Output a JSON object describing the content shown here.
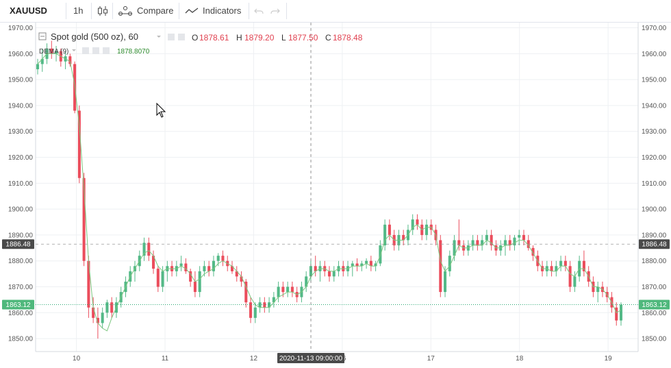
{
  "toolbar": {
    "symbol": "XAUUSD",
    "interval": "1h",
    "compare_label": "Compare",
    "indicators_label": "Indicators"
  },
  "legend": {
    "title": "Spot gold (500 oz), 60",
    "open_label": "O",
    "open": "1878.61",
    "high_label": "H",
    "high": "1879.20",
    "low_label": "L",
    "low": "1877.50",
    "close_label": "C",
    "close": "1878.48",
    "dema_label": "DEMA (9)",
    "dema_value": "1878.8070"
  },
  "colors": {
    "up": "#53b987",
    "down": "#eb4d5c",
    "dema": "#7bc67e",
    "grid": "#eef0f3"
  },
  "chart_data": {
    "type": "candlestick",
    "ylim": [
      1845,
      1972
    ],
    "y_ticks": [
      "1970.00",
      "1960.00",
      "1950.00",
      "1940.00",
      "1930.00",
      "1920.00",
      "1910.00",
      "1900.00",
      "1890.00",
      "1880.00",
      "1870.00",
      "1860.00",
      "1850.00"
    ],
    "x_ticks": [
      "10",
      "11",
      "12",
      "16",
      "17",
      "18",
      "19"
    ],
    "crosshair": {
      "x_label": "2020-11-13 09:00:00",
      "y_label": "1886.48",
      "y": 1886.48
    },
    "last_price": {
      "label": "1863.12",
      "y": 1863.12
    },
    "candles": [
      [
        1954,
        1958,
        1952,
        1956
      ],
      [
        1956,
        1962,
        1953,
        1958
      ],
      [
        1958,
        1964,
        1956,
        1962
      ],
      [
        1962,
        1965,
        1958,
        1960
      ],
      [
        1960,
        1963,
        1957,
        1961
      ],
      [
        1961,
        1962,
        1955,
        1957
      ],
      [
        1957,
        1961,
        1954,
        1959
      ],
      [
        1959,
        1960,
        1955,
        1956
      ],
      [
        1956,
        1957,
        1937,
        1938
      ],
      [
        1938,
        1940,
        1910,
        1912
      ],
      [
        1912,
        1914,
        1878,
        1880
      ],
      [
        1880,
        1882,
        1858,
        1862
      ],
      [
        1862,
        1866,
        1856,
        1858
      ],
      [
        1858,
        1862,
        1850,
        1856
      ],
      [
        1856,
        1862,
        1854,
        1860
      ],
      [
        1860,
        1865,
        1858,
        1864
      ],
      [
        1864,
        1866,
        1858,
        1860
      ],
      [
        1860,
        1866,
        1858,
        1864
      ],
      [
        1864,
        1870,
        1862,
        1868
      ],
      [
        1868,
        1874,
        1866,
        1872
      ],
      [
        1872,
        1878,
        1870,
        1876
      ],
      [
        1876,
        1880,
        1872,
        1878
      ],
      [
        1878,
        1884,
        1876,
        1882
      ],
      [
        1882,
        1889,
        1880,
        1887
      ],
      [
        1887,
        1889,
        1880,
        1882
      ],
      [
        1882,
        1884,
        1875,
        1877
      ],
      [
        1877,
        1878,
        1868,
        1870
      ],
      [
        1870,
        1878,
        1868,
        1876
      ],
      [
        1876,
        1880,
        1872,
        1878
      ],
      [
        1878,
        1880,
        1874,
        1876
      ],
      [
        1876,
        1880,
        1874,
        1878
      ],
      [
        1878,
        1882,
        1876,
        1879
      ],
      [
        1879,
        1881,
        1875,
        1876
      ],
      [
        1876,
        1877,
        1870,
        1872
      ],
      [
        1872,
        1876,
        1866,
        1868
      ],
      [
        1868,
        1878,
        1866,
        1876
      ],
      [
        1876,
        1880,
        1874,
        1878
      ],
      [
        1878,
        1880,
        1874,
        1876
      ],
      [
        1876,
        1882,
        1874,
        1880
      ],
      [
        1880,
        1883,
        1878,
        1882
      ],
      [
        1882,
        1884,
        1878,
        1880
      ],
      [
        1880,
        1882,
        1876,
        1878
      ],
      [
        1878,
        1880,
        1875,
        1876
      ],
      [
        1876,
        1878,
        1872,
        1874
      ],
      [
        1874,
        1876,
        1870,
        1872
      ],
      [
        1872,
        1873,
        1862,
        1864
      ],
      [
        1864,
        1866,
        1856,
        1858
      ],
      [
        1858,
        1864,
        1856,
        1862
      ],
      [
        1862,
        1866,
        1860,
        1864
      ],
      [
        1864,
        1866,
        1860,
        1862
      ],
      [
        1862,
        1866,
        1860,
        1864
      ],
      [
        1864,
        1868,
        1862,
        1866
      ],
      [
        1866,
        1872,
        1864,
        1870
      ],
      [
        1870,
        1872,
        1866,
        1868
      ],
      [
        1868,
        1872,
        1866,
        1870
      ],
      [
        1870,
        1872,
        1866,
        1868
      ],
      [
        1868,
        1870,
        1864,
        1866
      ],
      [
        1866,
        1872,
        1864,
        1870
      ],
      [
        1870,
        1876,
        1868,
        1874
      ],
      [
        1874,
        1880,
        1872,
        1878
      ],
      [
        1878,
        1882,
        1874,
        1876
      ],
      [
        1876,
        1880,
        1872,
        1878
      ],
      [
        1878,
        1880,
        1874,
        1876
      ],
      [
        1876,
        1878,
        1872,
        1874
      ],
      [
        1874,
        1878,
        1872,
        1876
      ],
      [
        1876,
        1880,
        1874,
        1878
      ],
      [
        1878,
        1880,
        1874,
        1876
      ],
      [
        1876,
        1880,
        1874,
        1878
      ],
      [
        1878,
        1880,
        1874,
        1879
      ],
      [
        1879,
        1881,
        1876,
        1878
      ],
      [
        1878,
        1880,
        1876,
        1879
      ],
      [
        1879,
        1881,
        1877,
        1880
      ],
      [
        1880,
        1882,
        1876,
        1878
      ],
      [
        1878,
        1880,
        1876,
        1879
      ],
      [
        1879,
        1888,
        1878,
        1886
      ],
      [
        1886,
        1896,
        1884,
        1894
      ],
      [
        1894,
        1896,
        1888,
        1890
      ],
      [
        1890,
        1892,
        1884,
        1886
      ],
      [
        1886,
        1892,
        1884,
        1890
      ],
      [
        1890,
        1892,
        1886,
        1888
      ],
      [
        1888,
        1894,
        1886,
        1892
      ],
      [
        1892,
        1898,
        1890,
        1896
      ],
      [
        1896,
        1898,
        1892,
        1894
      ],
      [
        1894,
        1896,
        1888,
        1890
      ],
      [
        1890,
        1896,
        1888,
        1894
      ],
      [
        1894,
        1896,
        1890,
        1892
      ],
      [
        1892,
        1894,
        1886,
        1888
      ],
      [
        1888,
        1890,
        1866,
        1868
      ],
      [
        1868,
        1878,
        1866,
        1876
      ],
      [
        1876,
        1884,
        1874,
        1882
      ],
      [
        1882,
        1890,
        1880,
        1888
      ],
      [
        1888,
        1896,
        1884,
        1886
      ],
      [
        1886,
        1888,
        1882,
        1884
      ],
      [
        1884,
        1888,
        1882,
        1886
      ],
      [
        1886,
        1890,
        1884,
        1888
      ],
      [
        1888,
        1890,
        1884,
        1886
      ],
      [
        1886,
        1890,
        1884,
        1888
      ],
      [
        1888,
        1892,
        1886,
        1890
      ],
      [
        1890,
        1892,
        1884,
        1886
      ],
      [
        1886,
        1888,
        1882,
        1884
      ],
      [
        1884,
        1888,
        1882,
        1886
      ],
      [
        1886,
        1890,
        1882,
        1888
      ],
      [
        1888,
        1890,
        1884,
        1886
      ],
      [
        1886,
        1890,
        1884,
        1889
      ],
      [
        1889,
        1892,
        1886,
        1890
      ],
      [
        1890,
        1892,
        1886,
        1888
      ],
      [
        1888,
        1890,
        1884,
        1885
      ],
      [
        1885,
        1886,
        1880,
        1882
      ],
      [
        1882,
        1884,
        1876,
        1878
      ],
      [
        1878,
        1880,
        1874,
        1876
      ],
      [
        1876,
        1880,
        1874,
        1878
      ],
      [
        1878,
        1880,
        1874,
        1876
      ],
      [
        1876,
        1880,
        1874,
        1878
      ],
      [
        1878,
        1882,
        1876,
        1880
      ],
      [
        1880,
        1882,
        1876,
        1878
      ],
      [
        1878,
        1880,
        1868,
        1870
      ],
      [
        1870,
        1876,
        1868,
        1874
      ],
      [
        1874,
        1882,
        1872,
        1880
      ],
      [
        1880,
        1884,
        1874,
        1876
      ],
      [
        1876,
        1878,
        1870,
        1872
      ],
      [
        1872,
        1874,
        1866,
        1868
      ],
      [
        1868,
        1872,
        1864,
        1870
      ],
      [
        1870,
        1872,
        1866,
        1868
      ],
      [
        1868,
        1870,
        1864,
        1866
      ],
      [
        1866,
        1868,
        1860,
        1862
      ],
      [
        1862,
        1864,
        1855,
        1857
      ],
      [
        1857,
        1864,
        1855,
        1863.12
      ]
    ],
    "dema": [
      1956,
      1958,
      1960,
      1960,
      1960,
      1959,
      1958,
      1957,
      1948,
      1932,
      1908,
      1880,
      1862,
      1856,
      1854,
      1853,
      1858,
      1862,
      1866,
      1870,
      1874,
      1877,
      1880,
      1883,
      1884,
      1882,
      1878,
      1876,
      1877,
      1877,
      1877,
      1878,
      1877,
      1875,
      1872,
      1873,
      1875,
      1876,
      1877,
      1879,
      1880,
      1879,
      1878,
      1876,
      1874,
      1870,
      1866,
      1863,
      1862,
      1862,
      1862,
      1864,
      1866,
      1867,
      1868,
      1868,
      1867,
      1868,
      1870,
      1874,
      1876,
      1877,
      1877,
      1876,
      1876,
      1877,
      1877,
      1877,
      1878,
      1878,
      1878,
      1879,
      1878,
      1878,
      1882,
      1888,
      1890,
      1888,
      1888,
      1888,
      1890,
      1893,
      1894,
      1892,
      1893,
      1893,
      1890,
      1880,
      1876,
      1878,
      1882,
      1886,
      1885,
      1885,
      1886,
      1886,
      1886,
      1888,
      1887,
      1885,
      1885,
      1886,
      1886,
      1887,
      1888,
      1888,
      1886,
      1883,
      1880,
      1877,
      1877,
      1876,
      1876,
      1878,
      1878,
      1875,
      1874,
      1877,
      1877,
      1874,
      1870,
      1870,
      1869,
      1867,
      1864,
      1860,
      1861
    ]
  }
}
